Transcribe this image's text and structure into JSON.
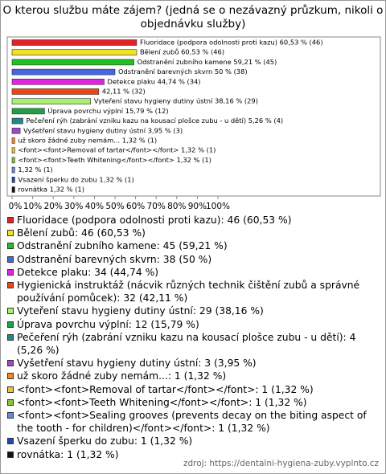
{
  "chart_data": {
    "type": "bar",
    "orientation": "horizontal",
    "title": "O kterou službu máte zájem? (jedná se o nezávazný průzkum, nikoli o objednávku služby)",
    "values": [
      60.53,
      60.53,
      59.21,
      50,
      44.74,
      42.11,
      38.16,
      15.79,
      5.26,
      3.95,
      1.32,
      1.32,
      1.32,
      1.32,
      1.32,
      1.32
    ],
    "value_labels": [
      "Fluoridace (podpora odolnosti proti kazu) 60,53 % (46)",
      "Bělení zubů 60,53 % (46)",
      "Odstranění zubního kamene 59,21 % (45)",
      "Odstranění barevných skvrn 50 % (38)",
      "Detekce plaku 44,74 % (34)",
      "42,11 % (32)",
      "Vyteření stavu hygieny dutiny ústní 38,16 % (29)",
      "Úprava povrchu výplní 15,79 % (12)",
      "Pečeření rýh (zabrání vzniku kazu na kousací plošce zubu - u dětí) 5,26 % (4)",
      "Vyšetření stavu hygieny dutiny ústní 3,95 % (3)",
      "už skoro žádné zuby nemám... 1,32 % (1)",
      "<font><font>Removal of tartar</font></font> 1,32 % (1)",
      "<font><font>Teeth Whitening</font></font> 1,32 % (1)",
      "1,32 % (1)",
      "Vsazení šperku do zubu 1,32 % (1)",
      "rovnátka 1,32 % (1)"
    ],
    "categories": [
      "Fluoridace (podpora odolnosti proti kazu): 46 (60,53 %)",
      "Bělení zubů: 46 (60,53 %)",
      "Odstranění zubního kamene: 45 (59,21 %)",
      "Odstranění barevných skvrn: 38 (50 %)",
      "Detekce plaku: 34 (44,74 %)",
      "Hygienická instruktáž (nácvik různých technik čištění zubů a správné používání pomůcek): 32 (42,11 %)",
      "Vyteření stavu hygieny dutiny ústní: 29 (38,16 %)",
      "Úprava povrchu výplní: 12 (15,79 %)",
      "Pečeření rýh (zabrání vzniku kazu na kousací plošce zubu - u dětí): 4 (5,26 %)",
      "Vyšetření stavu hygieny dutiny ústní: 3 (3,95 %)",
      "už skoro žádné zuby nemám...: 1 (1,32 %)",
      "<font><font>Removal of tartar</font></font>: 1 (1,32 %)",
      "<font><font>Teeth Whitening</font></font>: 1 (1,32 %)",
      "<font><font>Sealing grooves (prevents decay on the biting aspect of the tooth - for children)</font></font>: 1 (1,32 %)",
      "Vsazení šperku do zubu: 1 (1,32 %)",
      "rovnátka: 1 (1,32 %)"
    ],
    "colors": [
      "#e02424",
      "#f2e224",
      "#22c022",
      "#4466e0",
      "#e024e0",
      "#f04410",
      "#a8f070",
      "#22a048",
      "#208888",
      "#a048c8",
      "#f08828",
      "#f0c040",
      "#88c040",
      "#6688e0",
      "#2448a8",
      "#141414"
    ],
    "xlim": [
      0,
      100
    ],
    "xticks": [
      {
        "value": 0,
        "label": "0%"
      },
      {
        "value": 10,
        "label": "10%"
      },
      {
        "value": 20,
        "label": "20%"
      },
      {
        "value": 30,
        "label": "30%"
      },
      {
        "value": 40,
        "label": "40%"
      },
      {
        "value": 50,
        "label": "50%"
      },
      {
        "value": 60,
        "label": "60%"
      },
      {
        "value": 70,
        "label": "70%"
      },
      {
        "value": 80,
        "label": "80%"
      },
      {
        "value": 90,
        "label": "90%"
      },
      {
        "value": 100,
        "label": "100%"
      }
    ],
    "source": "zdroj: https://dentalni-hygiena-zuby.vyplnto.cz"
  }
}
